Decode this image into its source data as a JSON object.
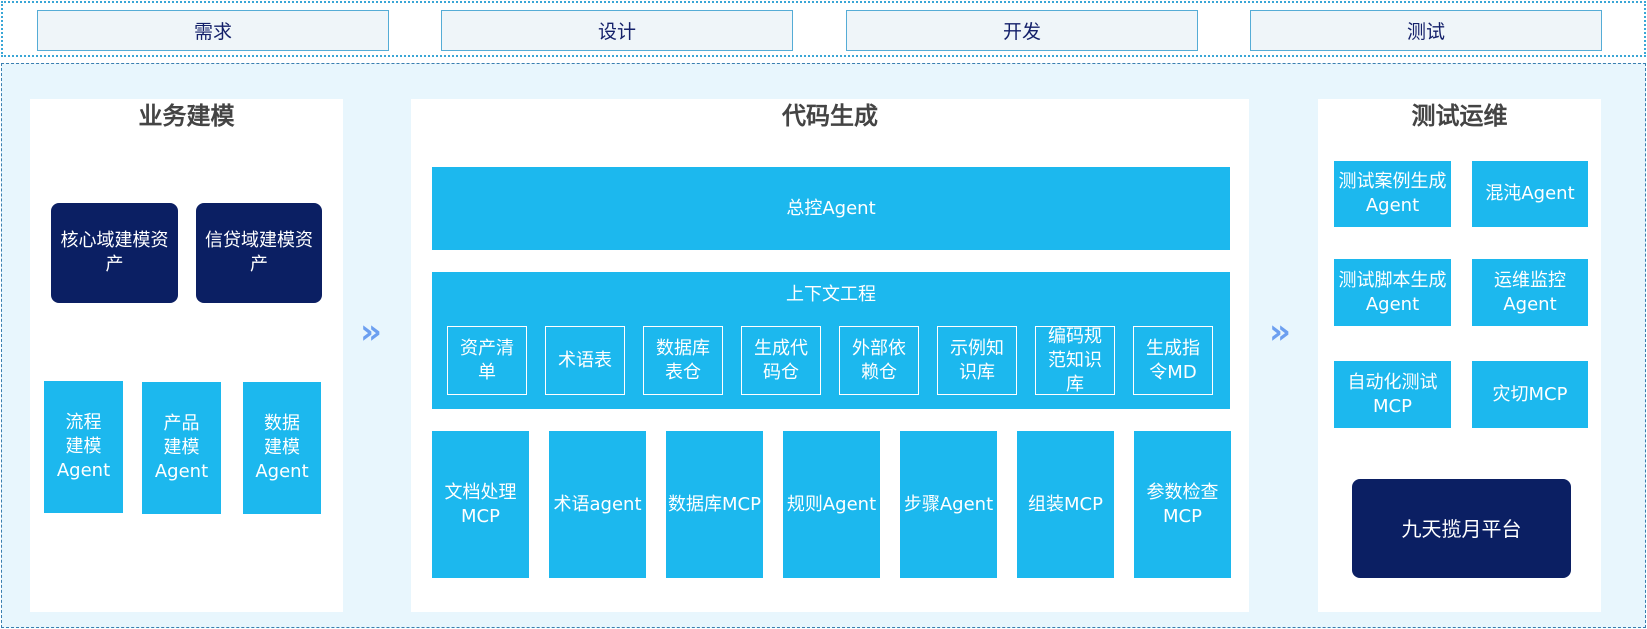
{
  "phases": [
    "需求",
    "设计",
    "开发",
    "测试"
  ],
  "business_modeling": {
    "title": "业务建模",
    "assets": [
      "核心域建模资产",
      "信贷域建模资产"
    ],
    "agents": [
      "流程建模Agent",
      "产品建模Agent",
      "数据建模Agent"
    ]
  },
  "code_generation": {
    "title": "代码生成",
    "master_agent": "总控Agent",
    "context_engineering": {
      "title": "上下文工程",
      "items": [
        "资产清单",
        "术语表",
        "数据库表仓",
        "生成代码仓",
        "外部依赖仓",
        "示例知识库",
        "编码规范知识库",
        "生成指令MD"
      ]
    },
    "tools": [
      "文档处理MCP",
      "术语agent",
      "数据库MCP",
      "规则Agent",
      "步骤Agent",
      "组装MCP",
      "参数检查MCP"
    ]
  },
  "test_ops": {
    "title": "测试运维",
    "items": [
      "测试案例生成Agent",
      "混沌Agent",
      "测试脚本生成Agent",
      "运维监控Agent",
      "自动化测试MCP",
      "灾切MCP"
    ],
    "platform": "九天揽月平台"
  },
  "arrow_icon": "double-chevron-right",
  "colors": {
    "cyan": "#1cb8ee",
    "navy": "#0b1f63",
    "arrow": "#6c9ff0"
  }
}
